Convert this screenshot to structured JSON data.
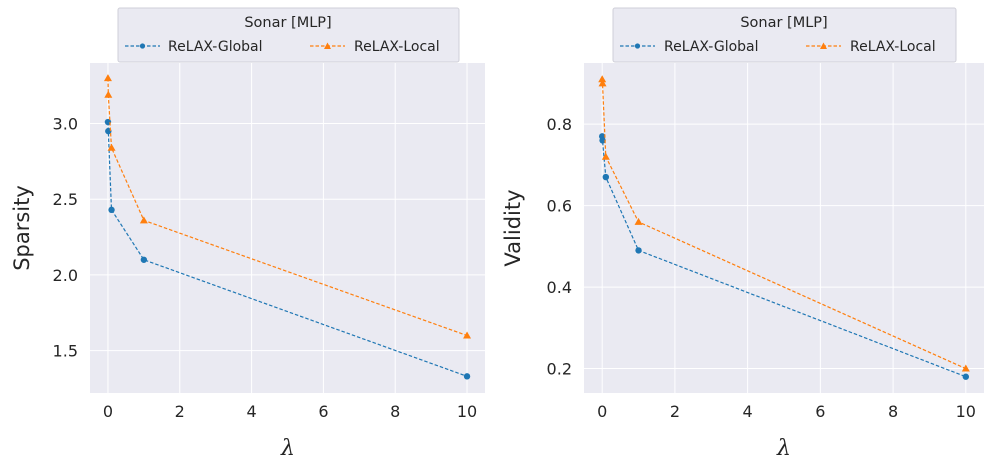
{
  "colors": {
    "global": "#1f77b4",
    "local": "#ff7f0e",
    "plot_bg": "#eaeaf2",
    "grid": "#ffffff"
  },
  "chart_data": [
    {
      "type": "line",
      "legend_title": "Sonar [MLP]",
      "xlabel": "λ",
      "ylabel": "Sparsity",
      "xlim": [
        -0.5,
        10.5
      ],
      "ylim": [
        1.22,
        3.4
      ],
      "xticks": [
        0,
        2,
        4,
        6,
        8,
        10
      ],
      "xtick_labels": [
        "0",
        "2",
        "4",
        "6",
        "8",
        "10"
      ],
      "yticks": [
        1.5,
        2.0,
        2.5,
        3.0
      ],
      "ytick_labels": [
        "1.5",
        "2.0",
        "2.5",
        "3.0"
      ],
      "grid": true,
      "legend_position": "top-center",
      "series": [
        {
          "name": "ReLAX-Global",
          "marker": "circle",
          "x": [
            0,
            0.01,
            0.1,
            1,
            10
          ],
          "values": [
            3.01,
            2.95,
            2.43,
            2.1,
            1.33
          ]
        },
        {
          "name": "ReLAX-Local",
          "marker": "triangle",
          "x": [
            0,
            0.01,
            0.1,
            1,
            10
          ],
          "values": [
            3.3,
            3.19,
            2.84,
            2.36,
            1.6
          ]
        }
      ]
    },
    {
      "type": "line",
      "legend_title": "Sonar [MLP]",
      "xlabel": "λ",
      "ylabel": "Validity",
      "xlim": [
        -0.5,
        10.5
      ],
      "ylim": [
        0.14,
        0.95
      ],
      "xticks": [
        0,
        2,
        4,
        6,
        8,
        10
      ],
      "xtick_labels": [
        "0",
        "2",
        "4",
        "6",
        "8",
        "10"
      ],
      "yticks": [
        0.2,
        0.4,
        0.6,
        0.8
      ],
      "ytick_labels": [
        "0.2",
        "0.4",
        "0.6",
        "0.8"
      ],
      "grid": true,
      "legend_position": "top-center",
      "series": [
        {
          "name": "ReLAX-Global",
          "marker": "circle",
          "x": [
            0,
            0.01,
            0.1,
            1,
            10
          ],
          "values": [
            0.77,
            0.76,
            0.67,
            0.49,
            0.18
          ]
        },
        {
          "name": "ReLAX-Local",
          "marker": "triangle",
          "x": [
            0,
            0.01,
            0.1,
            1,
            10
          ],
          "values": [
            0.91,
            0.9,
            0.72,
            0.56,
            0.2
          ]
        }
      ]
    }
  ]
}
